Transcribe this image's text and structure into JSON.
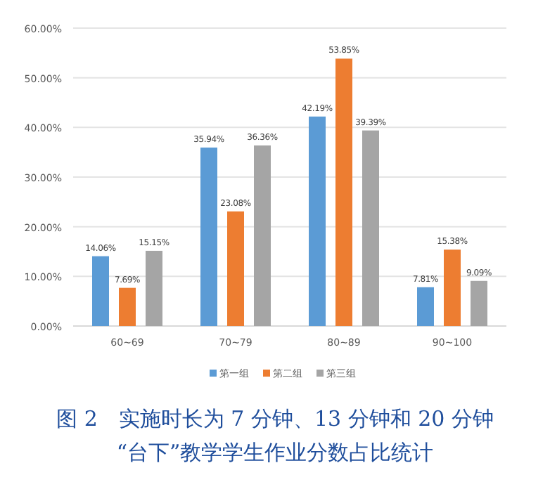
{
  "chart_data": {
    "type": "bar",
    "title": "图 2　实施时长为 7 分钟、13 分钟和 20 分钟\n“台下”教学学生作业分数占比统计",
    "categories": [
      "60~69",
      "70~79",
      "80~89",
      "90~100"
    ],
    "series": [
      {
        "name": "第一组",
        "color": "#5b9bd5",
        "values": [
          14.06,
          35.94,
          42.19,
          7.81
        ],
        "value_labels": [
          "14.06%",
          "35.94%",
          "42.19%",
          "7.81%"
        ]
      },
      {
        "name": "第二组",
        "color": "#ed7d31",
        "values": [
          7.69,
          23.08,
          53.85,
          15.38
        ],
        "value_labels": [
          "7.69%",
          "23.08%",
          "53.85%",
          "15.38%"
        ]
      },
      {
        "name": "第三组",
        "color": "#a5a5a5",
        "values": [
          15.15,
          36.36,
          39.39,
          9.09
        ],
        "value_labels": [
          "15.15%",
          "36.36%",
          "39.39%",
          "9.09%"
        ]
      }
    ],
    "ylim": [
      0,
      60
    ],
    "yticks": [
      {
        "value": 0,
        "label": "0.00%"
      },
      {
        "value": 10,
        "label": "10.00%"
      },
      {
        "value": 20,
        "label": "20.00%"
      },
      {
        "value": 30,
        "label": "30.00%"
      },
      {
        "value": 40,
        "label": "40.00%"
      },
      {
        "value": 50,
        "label": "50.00%"
      },
      {
        "value": 60,
        "label": "60.00%"
      }
    ],
    "grid": "y",
    "legend": "bottom"
  }
}
